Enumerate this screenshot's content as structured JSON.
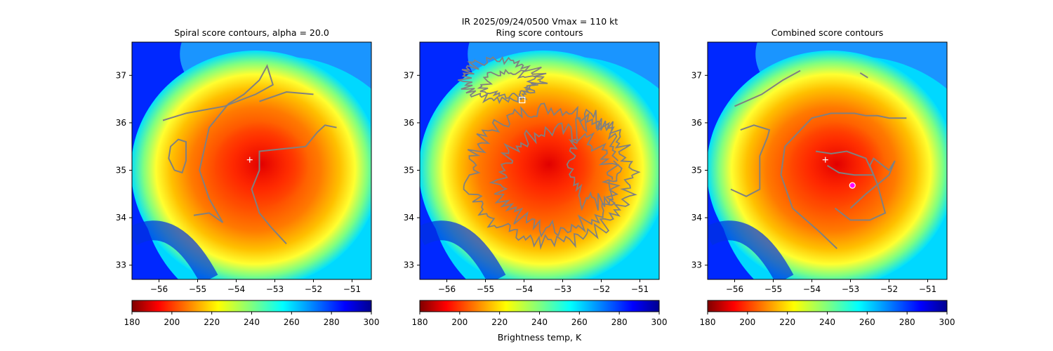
{
  "figure": {
    "suptitle_line1": "IR  2025/09/24/0500    Vmax = 110 kt"
  },
  "panels": [
    {
      "title": "Spiral score contours, alpha = 20.0",
      "colorbar_label": "",
      "markers": [
        {
          "kind": "plus",
          "label": "",
          "x": -53.65,
          "y": 35.22,
          "color": "#ffffff"
        }
      ]
    },
    {
      "title": "Ring score contours",
      "colorbar_label": "Brightness temp, K",
      "markers": [
        {
          "kind": "square",
          "label": "",
          "x": -54.05,
          "y": 36.48,
          "color": "#ffffff"
        }
      ]
    },
    {
      "title": "Combined score contours",
      "colorbar_label": "",
      "markers": [
        {
          "kind": "plus",
          "label": "",
          "x": -53.65,
          "y": 35.22,
          "color": "#ffffff"
        },
        {
          "kind": "circle",
          "label": "",
          "x": -52.95,
          "y": 34.68,
          "color": "#ff00ff"
        }
      ]
    }
  ],
  "chart_data": {
    "type": "heatmap",
    "title": "IR  2025/09/24/0500    Vmax = 110 kt",
    "xlim": [
      -56.7,
      -50.5
    ],
    "ylim": [
      32.7,
      37.7
    ],
    "xticks": [
      -56,
      -55,
      -54,
      -53,
      -52,
      -51
    ],
    "yticks": [
      33,
      34,
      35,
      36,
      37
    ],
    "colorbar": {
      "min": 180,
      "max": 300,
      "ticks": [
        180,
        200,
        220,
        240,
        260,
        280,
        300
      ],
      "colormap": "jet_r",
      "label": "Brightness temp, K"
    },
    "storm_center": {
      "x": -53.5,
      "y": 35.2
    },
    "contour_color": "#808080",
    "spiral_contours": [
      [
        [
          -55.1,
          34.05
        ],
        [
          -54.7,
          34.1
        ],
        [
          -54.35,
          33.9
        ],
        [
          -54.7,
          34.4
        ],
        [
          -54.95,
          35.0
        ],
        [
          -54.7,
          35.9
        ],
        [
          -54.2,
          36.4
        ],
        [
          -53.8,
          36.6
        ],
        [
          -53.4,
          36.9
        ],
        [
          -53.2,
          37.2
        ],
        [
          -53.05,
          36.8
        ],
        [
          -53.5,
          36.6
        ],
        [
          -54.3,
          36.35
        ],
        [
          -55.3,
          36.2
        ],
        [
          -55.9,
          36.05
        ]
      ],
      [
        [
          -52.7,
          33.45
        ],
        [
          -53.1,
          33.8
        ],
        [
          -53.4,
          34.1
        ],
        [
          -53.6,
          34.6
        ],
        [
          -53.4,
          35.0
        ],
        [
          -53.4,
          35.4
        ],
        [
          -52.8,
          35.45
        ],
        [
          -52.2,
          35.5
        ],
        [
          -51.9,
          35.8
        ],
        [
          -51.7,
          35.95
        ],
        [
          -51.4,
          35.9
        ]
      ],
      [
        [
          -55.6,
          35.0
        ],
        [
          -55.4,
          34.95
        ],
        [
          -55.3,
          35.2
        ],
        [
          -55.3,
          35.6
        ],
        [
          -55.5,
          35.65
        ],
        [
          -55.7,
          35.5
        ],
        [
          -55.75,
          35.25
        ],
        [
          -55.6,
          35.0
        ]
      ],
      [
        [
          -53.4,
          36.45
        ],
        [
          -52.7,
          36.65
        ],
        [
          -52.0,
          36.6
        ]
      ]
    ],
    "combined_contours": [
      [
        [
          -53.35,
          33.35
        ],
        [
          -53.8,
          33.7
        ],
        [
          -54.5,
          34.2
        ],
        [
          -54.8,
          34.9
        ],
        [
          -54.7,
          35.5
        ],
        [
          -54.0,
          36.1
        ],
        [
          -53.5,
          36.2
        ],
        [
          -52.9,
          36.2
        ],
        [
          -52.6,
          36.15
        ],
        [
          -52.3,
          36.15
        ],
        [
          -52.0,
          36.1
        ],
        [
          -51.55,
          36.1
        ]
      ],
      [
        [
          -53.4,
          34.2
        ],
        [
          -53.0,
          33.95
        ],
        [
          -52.5,
          33.95
        ],
        [
          -52.1,
          34.1
        ],
        [
          -52.3,
          34.7
        ],
        [
          -52.5,
          35.1
        ],
        [
          -52.4,
          35.25
        ],
        [
          -52.0,
          35.0
        ],
        [
          -51.85,
          35.2
        ],
        [
          -52.0,
          34.9
        ],
        [
          -52.6,
          34.5
        ],
        [
          -53.0,
          34.2
        ]
      ],
      [
        [
          -56.1,
          34.6
        ],
        [
          -55.7,
          34.45
        ],
        [
          -55.35,
          34.6
        ],
        [
          -55.35,
          35.3
        ],
        [
          -55.15,
          35.7
        ],
        [
          -55.1,
          35.85
        ],
        [
          -55.5,
          35.95
        ],
        [
          -55.85,
          35.85
        ]
      ],
      [
        [
          -56.0,
          36.35
        ],
        [
          -55.3,
          36.6
        ],
        [
          -54.75,
          36.9
        ],
        [
          -54.3,
          37.1
        ]
      ],
      [
        [
          -52.75,
          37.05
        ],
        [
          -52.55,
          36.95
        ]
      ],
      [
        [
          -53.9,
          35.4
        ],
        [
          -53.5,
          35.35
        ],
        [
          -53.1,
          35.4
        ],
        [
          -52.6,
          35.25
        ],
        [
          -52.4,
          34.9
        ],
        [
          -52.9,
          34.9
        ],
        [
          -53.3,
          34.95
        ],
        [
          -53.6,
          35.1
        ]
      ]
    ]
  }
}
